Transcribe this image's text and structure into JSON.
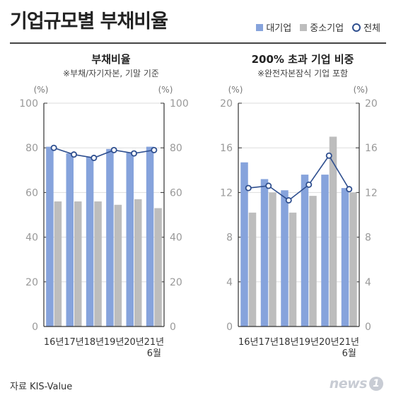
{
  "title": "기업규모별 부채비율",
  "legend": {
    "large": "대기업",
    "sme": "중소기업",
    "total": "전체"
  },
  "colors": {
    "large": "#86a3dc",
    "sme": "#bdbdbd",
    "total_line": "#2f4f8f"
  },
  "source": "자료 KIS-Value",
  "logo": "news1",
  "chart_data": [
    {
      "type": "bar",
      "title": "부채비율",
      "subtitle": "※부채/자기자본, 기말 기준",
      "unit_left": "(%)",
      "unit_right": "(%)",
      "categories": [
        "16년",
        "17년",
        "18년",
        "19년",
        "20년",
        "21년"
      ],
      "category_sublabels": [
        "",
        "",
        "",
        "",
        "",
        "6월"
      ],
      "ylim": [
        0,
        100
      ],
      "yticks": [
        0,
        20,
        40,
        60,
        80,
        100
      ],
      "series": [
        {
          "name": "대기업",
          "type": "bar",
          "values": [
            80.5,
            77.5,
            76,
            79.5,
            78,
            80.5
          ]
        },
        {
          "name": "중소기업",
          "type": "bar",
          "values": [
            56,
            56,
            56,
            54.5,
            57,
            53
          ]
        },
        {
          "name": "전체",
          "type": "line",
          "values": [
            80,
            77,
            75.5,
            79,
            77.5,
            79
          ]
        }
      ]
    },
    {
      "type": "bar",
      "title": "200% 초과 기업 비중",
      "subtitle": "※완전자본잠식 기업 포함",
      "unit_left": "(%)",
      "unit_right": "(%)",
      "categories": [
        "16년",
        "17년",
        "18년",
        "19년",
        "20년",
        "21년"
      ],
      "category_sublabels": [
        "",
        "",
        "",
        "",
        "",
        "6월"
      ],
      "ylim": [
        0,
        20
      ],
      "yticks": [
        0,
        4,
        8,
        12,
        16,
        20
      ],
      "series": [
        {
          "name": "대기업",
          "type": "bar",
          "values": [
            14.7,
            13.2,
            12.2,
            13.6,
            13.6,
            12.4
          ]
        },
        {
          "name": "중소기업",
          "type": "bar",
          "values": [
            10.2,
            12,
            10.2,
            11.7,
            17,
            12
          ]
        },
        {
          "name": "전체",
          "type": "line",
          "values": [
            12.4,
            12.6,
            11.3,
            12.7,
            15.3,
            12.3
          ]
        }
      ]
    }
  ]
}
